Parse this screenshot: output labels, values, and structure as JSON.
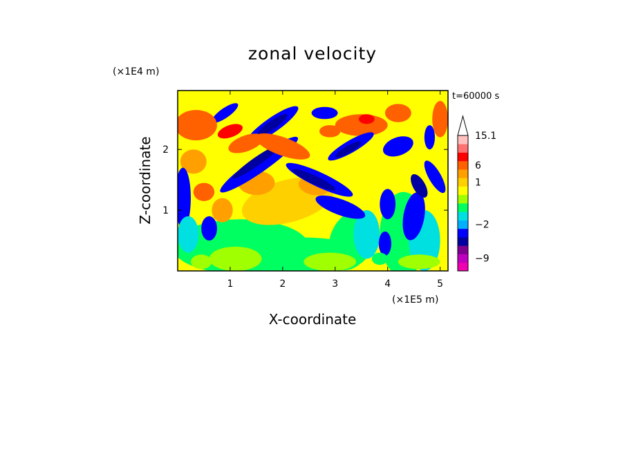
{
  "chart_data": {
    "type": "heatmap",
    "title": "zonal velocity",
    "xlabel": "X-coordinate",
    "ylabel": "Z-coordinate",
    "x_unit": "(×1E5 m)",
    "y_unit": "(×1E4 m)",
    "time_label": "t=60000 s",
    "xlim": [
      0,
      5.15
    ],
    "ylim": [
      0,
      2.97
    ],
    "x_ticks": [
      1,
      2,
      3,
      4,
      5
    ],
    "y_ticks": [
      1,
      2
    ],
    "x_tick_labels": [
      "1",
      "2",
      "3",
      "4",
      "5"
    ],
    "y_tick_labels": [
      "1",
      "2"
    ],
    "colorbar": {
      "labels": [
        {
          "value": 15.1,
          "text": "15.1"
        },
        {
          "value": 6,
          "text": "6"
        },
        {
          "value": 1,
          "text": "1"
        },
        {
          "value": -2,
          "text": "−2"
        },
        {
          "value": -9,
          "text": "−9"
        }
      ],
      "bins": [
        {
          "color": "#f000b0",
          "value": -13
        },
        {
          "color": "#c000c0",
          "value": -10
        },
        {
          "color": "#800090",
          "value": -7
        },
        {
          "color": "#0000a0",
          "value": -5
        },
        {
          "color": "#0000ff",
          "value": -3
        },
        {
          "color": "#00b0ff",
          "value": -1.5
        },
        {
          "color": "#00e0e0",
          "value": -0.8
        },
        {
          "color": "#00ff60",
          "value": -0.3
        },
        {
          "color": "#a0ff00",
          "value": 0.2
        },
        {
          "color": "#ffff00",
          "value": 0.6
        },
        {
          "color": "#ffd000",
          "value": 1.2
        },
        {
          "color": "#ffa000",
          "value": 2.5
        },
        {
          "color": "#ff6000",
          "value": 5
        },
        {
          "color": "#ff0000",
          "value": 7.5
        },
        {
          "color": "#ff7070",
          "value": 10
        },
        {
          "color": "#ffc0c0",
          "value": 13
        }
      ],
      "overflow_color": "#ffffff"
    }
  }
}
